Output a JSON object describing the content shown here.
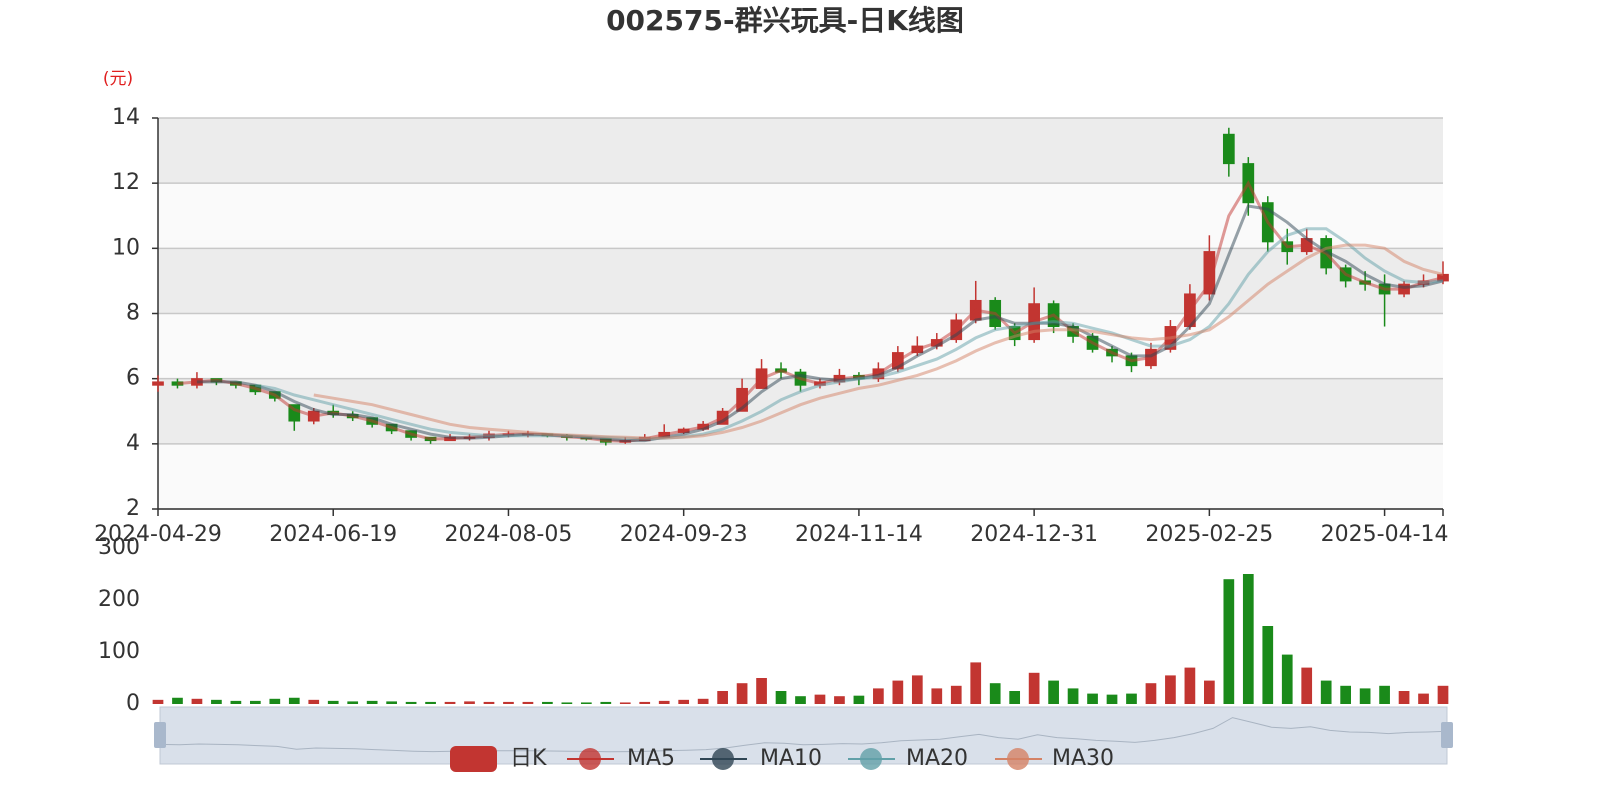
{
  "chart_data": [
    {
      "type": "candlestick",
      "title": "002575-群兴玩具-日K线图",
      "y_unit": "(元)",
      "name": "日K",
      "up_color": "#c23531",
      "down_color": "#1a8a1a",
      "ylim": [
        2,
        14
      ],
      "yticks": [
        2,
        4,
        6,
        8,
        10,
        12,
        14
      ],
      "grid": true,
      "categories": [
        "2024-04-29",
        null,
        null,
        null,
        null,
        null,
        null,
        null,
        null,
        "2024-06-19",
        null,
        null,
        null,
        null,
        null,
        null,
        null,
        null,
        "2024-08-05",
        null,
        null,
        null,
        null,
        null,
        null,
        null,
        null,
        "2024-09-23",
        null,
        null,
        null,
        null,
        null,
        null,
        null,
        null,
        "2024-11-14",
        null,
        null,
        null,
        null,
        null,
        null,
        null,
        null,
        "2024-12-31",
        null,
        null,
        null,
        null,
        null,
        null,
        null,
        null,
        "2025-02-25",
        null,
        null,
        null,
        null,
        null,
        null,
        null,
        null,
        "2025-04-14",
        null,
        null,
        null
      ],
      "values": [
        [
          5.8,
          5.9,
          5.6,
          6.1
        ],
        [
          5.9,
          5.8,
          5.7,
          6.0
        ],
        [
          5.8,
          6.0,
          5.7,
          6.2
        ],
        [
          6.0,
          5.9,
          5.8,
          6.0
        ],
        [
          5.9,
          5.8,
          5.7,
          5.9
        ],
        [
          5.8,
          5.6,
          5.5,
          5.8
        ],
        [
          5.6,
          5.4,
          5.3,
          5.6
        ],
        [
          5.2,
          4.7,
          4.4,
          5.2
        ],
        [
          4.7,
          5.0,
          4.6,
          5.1
        ],
        [
          5.0,
          4.9,
          4.8,
          5.2
        ],
        [
          4.9,
          4.8,
          4.7,
          5.0
        ],
        [
          4.8,
          4.6,
          4.5,
          4.8
        ],
        [
          4.6,
          4.4,
          4.3,
          4.6
        ],
        [
          4.4,
          4.2,
          4.1,
          4.4
        ],
        [
          4.2,
          4.1,
          4.0,
          4.2
        ],
        [
          4.1,
          4.2,
          4.1,
          4.3
        ],
        [
          4.2,
          4.2,
          4.1,
          4.3
        ],
        [
          4.2,
          4.3,
          4.1,
          4.4
        ],
        [
          4.3,
          4.3,
          4.2,
          4.4
        ],
        [
          4.3,
          4.3,
          4.2,
          4.4
        ],
        [
          4.3,
          4.25,
          4.2,
          4.3
        ],
        [
          4.25,
          4.2,
          4.1,
          4.3
        ],
        [
          4.2,
          4.15,
          4.1,
          4.2
        ],
        [
          4.15,
          4.05,
          3.95,
          4.15
        ],
        [
          4.05,
          4.1,
          4.0,
          4.2
        ],
        [
          4.1,
          4.2,
          4.1,
          4.3
        ],
        [
          4.2,
          4.35,
          4.2,
          4.6
        ],
        [
          4.35,
          4.45,
          4.3,
          4.5
        ],
        [
          4.45,
          4.6,
          4.4,
          4.7
        ],
        [
          4.6,
          5.0,
          4.6,
          5.1
        ],
        [
          5.0,
          5.7,
          5.0,
          6.0
        ],
        [
          5.7,
          6.3,
          5.7,
          6.6
        ],
        [
          6.3,
          6.2,
          6.0,
          6.5
        ],
        [
          6.2,
          5.8,
          5.6,
          6.3
        ],
        [
          5.8,
          5.9,
          5.7,
          6.0
        ],
        [
          5.9,
          6.1,
          5.8,
          6.3
        ],
        [
          6.1,
          6.0,
          5.8,
          6.2
        ],
        [
          6.0,
          6.3,
          5.9,
          6.5
        ],
        [
          6.3,
          6.8,
          6.2,
          7.0
        ],
        [
          6.8,
          7.0,
          6.7,
          7.3
        ],
        [
          7.0,
          7.2,
          6.9,
          7.4
        ],
        [
          7.2,
          7.8,
          7.1,
          8.0
        ],
        [
          7.8,
          8.4,
          7.7,
          9.0
        ],
        [
          8.4,
          7.6,
          7.5,
          8.5
        ],
        [
          7.6,
          7.2,
          7.0,
          7.7
        ],
        [
          7.2,
          8.3,
          7.1,
          8.8
        ],
        [
          8.3,
          7.6,
          7.4,
          8.4
        ],
        [
          7.6,
          7.3,
          7.1,
          7.7
        ],
        [
          7.3,
          6.9,
          6.8,
          7.4
        ],
        [
          6.9,
          6.7,
          6.5,
          7.0
        ],
        [
          6.7,
          6.4,
          6.2,
          6.8
        ],
        [
          6.4,
          6.9,
          6.3,
          7.1
        ],
        [
          6.9,
          7.6,
          6.8,
          7.8
        ],
        [
          7.6,
          8.6,
          7.5,
          8.9
        ],
        [
          8.6,
          9.9,
          8.4,
          10.4
        ],
        [
          13.5,
          12.6,
          12.2,
          13.7
        ],
        [
          12.6,
          11.4,
          11.0,
          12.8
        ],
        [
          11.4,
          10.2,
          9.9,
          11.6
        ],
        [
          10.2,
          9.9,
          9.5,
          10.6
        ],
        [
          9.9,
          10.3,
          9.8,
          10.6
        ],
        [
          10.3,
          9.4,
          9.2,
          10.4
        ],
        [
          9.4,
          9.0,
          8.8,
          9.5
        ],
        [
          9.0,
          8.9,
          8.7,
          9.3
        ],
        [
          8.9,
          8.6,
          7.6,
          9.2
        ],
        [
          8.6,
          8.9,
          8.5,
          9.0
        ],
        [
          8.9,
          9.0,
          8.8,
          9.2
        ],
        [
          9.0,
          9.2,
          8.9,
          9.6
        ]
      ],
      "series": [
        {
          "name": "MA5",
          "color": "#c23531",
          "values": [
            null,
            5.85,
            5.9,
            5.95,
            5.85,
            5.7,
            5.5,
            5.05,
            4.85,
            4.95,
            4.85,
            4.7,
            4.5,
            4.3,
            4.15,
            4.15,
            4.2,
            4.25,
            4.3,
            4.3,
            4.28,
            4.22,
            4.18,
            4.1,
            4.08,
            4.15,
            4.28,
            4.4,
            4.52,
            4.8,
            5.35,
            6.0,
            6.25,
            6.0,
            5.85,
            6.0,
            6.05,
            6.15,
            6.55,
            6.9,
            7.1,
            7.5,
            8.1,
            8.0,
            7.4,
            7.75,
            7.95,
            7.45,
            7.1,
            6.8,
            6.55,
            6.65,
            7.25,
            8.1,
            8.9,
            11.0,
            12.0,
            10.8,
            10.05,
            10.1,
            9.85,
            9.2,
            8.95,
            8.75,
            8.75,
            8.95,
            9.1
          ]
        },
        {
          "name": "MA10",
          "color": "#2f4554",
          "values": [
            null,
            null,
            5.9,
            5.9,
            5.9,
            5.8,
            5.6,
            5.3,
            5.05,
            4.9,
            4.9,
            4.8,
            4.6,
            4.45,
            4.3,
            4.2,
            4.17,
            4.2,
            4.25,
            4.3,
            4.28,
            4.25,
            4.2,
            4.15,
            4.1,
            4.1,
            4.2,
            4.3,
            4.45,
            4.7,
            5.1,
            5.6,
            6.0,
            6.1,
            6.0,
            5.95,
            6.0,
            6.1,
            6.35,
            6.7,
            7.0,
            7.35,
            7.8,
            7.9,
            7.7,
            7.7,
            7.7,
            7.6,
            7.3,
            7.0,
            6.7,
            6.7,
            7.0,
            7.6,
            8.3,
            9.8,
            11.3,
            11.2,
            10.8,
            10.3,
            9.9,
            9.6,
            9.2,
            8.9,
            8.8,
            8.85,
            9.0
          ]
        },
        {
          "name": "MA20",
          "color": "#61a0a8",
          "values": [
            null,
            null,
            null,
            null,
            null,
            5.8,
            5.7,
            5.5,
            5.35,
            5.2,
            5.05,
            4.9,
            4.75,
            4.6,
            4.45,
            4.35,
            4.3,
            4.25,
            4.25,
            4.25,
            4.25,
            4.25,
            4.22,
            4.2,
            4.17,
            4.15,
            4.17,
            4.22,
            4.3,
            4.45,
            4.7,
            5.0,
            5.35,
            5.6,
            5.8,
            5.9,
            6.0,
            6.05,
            6.2,
            6.4,
            6.6,
            6.9,
            7.25,
            7.5,
            7.6,
            7.7,
            7.75,
            7.7,
            7.55,
            7.4,
            7.2,
            7.0,
            7.0,
            7.2,
            7.6,
            8.3,
            9.2,
            9.9,
            10.4,
            10.6,
            10.6,
            10.2,
            9.7,
            9.3,
            9.0,
            8.95,
            9.0
          ]
        },
        {
          "name": "MA30",
          "color": "#d48265",
          "values": [
            null,
            null,
            null,
            null,
            null,
            null,
            null,
            null,
            5.5,
            5.4,
            5.3,
            5.2,
            5.05,
            4.9,
            4.75,
            4.6,
            4.5,
            4.45,
            4.4,
            4.35,
            4.3,
            4.27,
            4.25,
            4.22,
            4.2,
            4.18,
            4.18,
            4.2,
            4.25,
            4.35,
            4.5,
            4.7,
            4.95,
            5.2,
            5.4,
            5.55,
            5.7,
            5.8,
            5.95,
            6.1,
            6.3,
            6.55,
            6.85,
            7.1,
            7.3,
            7.45,
            7.5,
            7.5,
            7.45,
            7.35,
            7.25,
            7.2,
            7.25,
            7.35,
            7.5,
            7.9,
            8.4,
            8.9,
            9.3,
            9.7,
            10.0,
            10.1,
            10.1,
            10.0,
            9.6,
            9.35,
            9.2
          ]
        }
      ]
    },
    {
      "type": "bar",
      "ylim": [
        0,
        300
      ],
      "yticks": [
        0,
        100,
        200,
        300
      ],
      "values": [
        8,
        12,
        10,
        8,
        6,
        6,
        10,
        12,
        8,
        6,
        5,
        6,
        5,
        4,
        4,
        4,
        5,
        4,
        4,
        4,
        4,
        3,
        3,
        4,
        3,
        4,
        6,
        8,
        10,
        25,
        40,
        50,
        25,
        15,
        18,
        15,
        16,
        30,
        45,
        55,
        30,
        35,
        80,
        40,
        25,
        60,
        45,
        30,
        20,
        18,
        20,
        40,
        55,
        70,
        45,
        240,
        250,
        150,
        95,
        70,
        45,
        35,
        30,
        35,
        25,
        20,
        35
      ]
    }
  ]
}
